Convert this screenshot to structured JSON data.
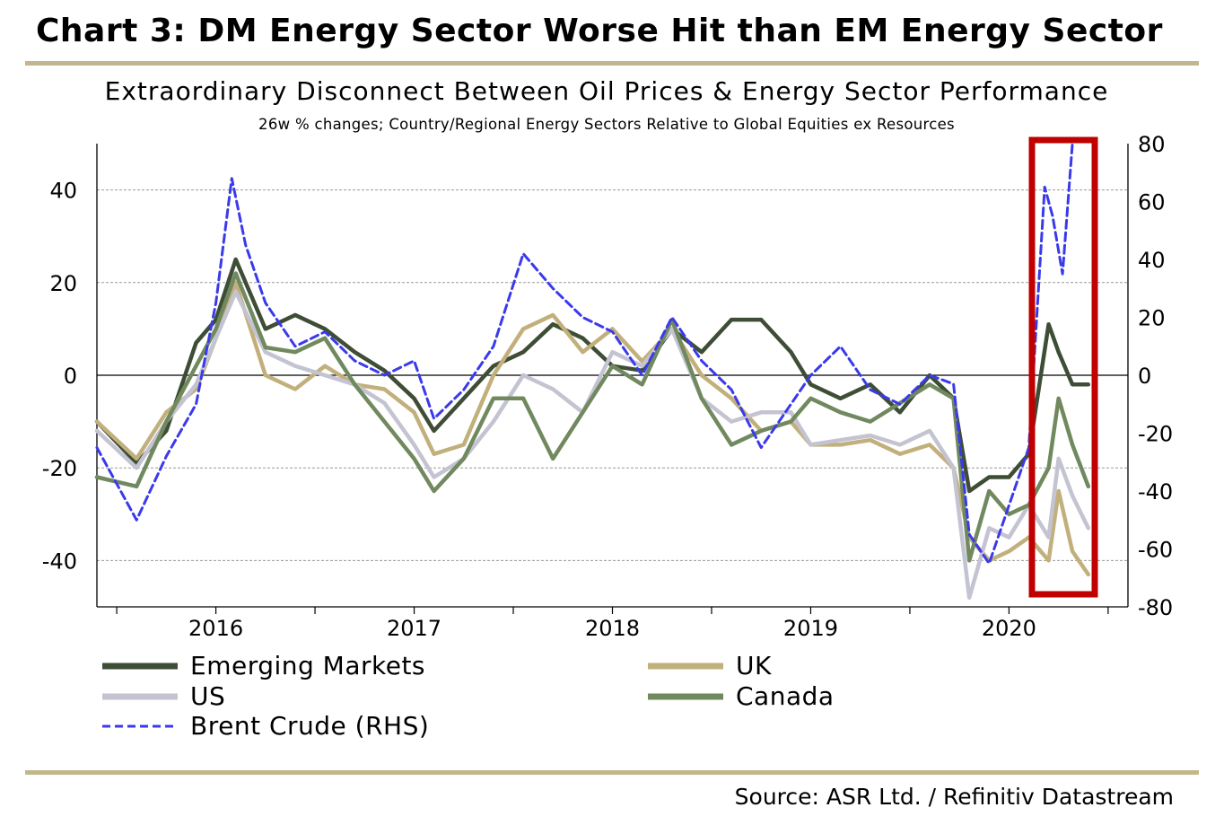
{
  "header": {
    "title": "Chart 3: DM Energy Sector Worse Hit than EM Energy Sector"
  },
  "footer": {
    "source": "Source: ASR Ltd. / Refinitiv Datastream"
  },
  "chart_data": {
    "type": "line",
    "title": "Extraordinary Disconnect Between Oil Prices & Energy Sector Performance",
    "subtitle": "26w % changes; Country/Regional Energy Sectors Relative to Global Equities ex Resources",
    "x_axis": {
      "range": [
        2015.4,
        2020.6
      ],
      "ticks": [
        2016,
        2017,
        2018,
        2019,
        2020
      ]
    },
    "y_left": {
      "range": [
        -50,
        50
      ],
      "ticks": [
        -40,
        -20,
        0,
        20,
        40
      ]
    },
    "y_right": {
      "range": [
        -80,
        80
      ],
      "ticks": [
        -80,
        -60,
        -40,
        -20,
        0,
        20,
        40,
        60,
        80
      ]
    },
    "grid": true,
    "legend_position": "bottom",
    "series": [
      {
        "name": "Emerging Markets",
        "axis": "left",
        "color": "#3e4d35",
        "dash": false,
        "x": [
          2015.4,
          2015.6,
          2015.75,
          2015.9,
          2016.0,
          2016.1,
          2016.25,
          2016.4,
          2016.55,
          2016.7,
          2016.85,
          2017.0,
          2017.1,
          2017.25,
          2017.4,
          2017.55,
          2017.7,
          2017.85,
          2018.0,
          2018.15,
          2018.3,
          2018.45,
          2018.6,
          2018.75,
          2018.9,
          2019.0,
          2019.15,
          2019.3,
          2019.45,
          2019.6,
          2019.72,
          2019.8,
          2019.9,
          2020.0,
          2020.1,
          2020.2,
          2020.25,
          2020.32,
          2020.4
        ],
        "y": [
          -10,
          -19,
          -12,
          7,
          12,
          25,
          10,
          13,
          10,
          5,
          1,
          -5,
          -12,
          -5,
          2,
          5,
          11,
          8,
          2,
          1,
          10,
          5,
          12,
          12,
          5,
          -2,
          -5,
          -2,
          -8,
          0,
          -5,
          -25,
          -22,
          -22,
          -17,
          11,
          5,
          -2,
          -2
        ]
      },
      {
        "name": "UK",
        "axis": "left",
        "color": "#c2b07c",
        "dash": false,
        "x": [
          2015.4,
          2015.6,
          2015.75,
          2015.9,
          2016.0,
          2016.1,
          2016.25,
          2016.4,
          2016.55,
          2016.7,
          2016.85,
          2017.0,
          2017.1,
          2017.25,
          2017.4,
          2017.55,
          2017.7,
          2017.85,
          2018.0,
          2018.15,
          2018.3,
          2018.45,
          2018.6,
          2018.75,
          2018.9,
          2019.0,
          2019.15,
          2019.3,
          2019.45,
          2019.6,
          2019.72,
          2019.8,
          2019.9,
          2020.0,
          2020.1,
          2020.2,
          2020.25,
          2020.32,
          2020.4
        ],
        "y": [
          -10,
          -18,
          -8,
          -3,
          8,
          20,
          0,
          -3,
          2,
          -2,
          -3,
          -8,
          -17,
          -15,
          0,
          10,
          13,
          5,
          10,
          3,
          10,
          0,
          -5,
          -12,
          -10,
          -15,
          -15,
          -14,
          -17,
          -15,
          -20,
          -35,
          -40,
          -38,
          -35,
          -40,
          -25,
          -38,
          -43
        ]
      },
      {
        "name": "US",
        "axis": "left",
        "color": "#c4c3d2",
        "dash": false,
        "x": [
          2015.4,
          2015.6,
          2015.75,
          2015.9,
          2016.0,
          2016.1,
          2016.25,
          2016.4,
          2016.55,
          2016.7,
          2016.85,
          2017.0,
          2017.1,
          2017.25,
          2017.4,
          2017.55,
          2017.7,
          2017.85,
          2018.0,
          2018.15,
          2018.3,
          2018.45,
          2018.6,
          2018.75,
          2018.9,
          2019.0,
          2019.15,
          2019.3,
          2019.45,
          2019.6,
          2019.72,
          2019.8,
          2019.9,
          2020.0,
          2020.1,
          2020.2,
          2020.25,
          2020.32,
          2020.4
        ],
        "y": [
          -12,
          -20,
          -10,
          -2,
          8,
          18,
          5,
          2,
          0,
          -2,
          -6,
          -15,
          -22,
          -18,
          -10,
          0,
          -3,
          -8,
          5,
          2,
          10,
          -5,
          -10,
          -8,
          -8,
          -15,
          -14,
          -13,
          -15,
          -12,
          -20,
          -48,
          -33,
          -35,
          -28,
          -35,
          -18,
          -26,
          -33
        ]
      },
      {
        "name": "Canada",
        "axis": "left",
        "color": "#71895f",
        "dash": false,
        "x": [
          2015.4,
          2015.6,
          2015.75,
          2015.9,
          2016.0,
          2016.1,
          2016.25,
          2016.4,
          2016.55,
          2016.7,
          2016.85,
          2017.0,
          2017.1,
          2017.25,
          2017.4,
          2017.55,
          2017.7,
          2017.85,
          2018.0,
          2018.15,
          2018.3,
          2018.45,
          2018.6,
          2018.75,
          2018.9,
          2019.0,
          2019.15,
          2019.3,
          2019.45,
          2019.6,
          2019.72,
          2019.8,
          2019.9,
          2020.0,
          2020.1,
          2020.2,
          2020.25,
          2020.32,
          2020.4
        ],
        "y": [
          -22,
          -24,
          -10,
          2,
          10,
          22,
          6,
          5,
          8,
          -2,
          -10,
          -18,
          -25,
          -18,
          -5,
          -5,
          -18,
          -8,
          2,
          -2,
          12,
          -5,
          -15,
          -12,
          -10,
          -5,
          -8,
          -10,
          -6,
          -2,
          -5,
          -40,
          -25,
          -30,
          -28,
          -20,
          -5,
          -15,
          -24
        ]
      },
      {
        "name": "Brent Crude (RHS)",
        "axis": "right",
        "color": "#3a3aec",
        "dash": true,
        "x": [
          2015.4,
          2015.6,
          2015.75,
          2015.9,
          2016.0,
          2016.08,
          2016.15,
          2016.25,
          2016.4,
          2016.55,
          2016.7,
          2016.85,
          2017.0,
          2017.1,
          2017.25,
          2017.4,
          2017.55,
          2017.7,
          2017.85,
          2018.0,
          2018.15,
          2018.3,
          2018.45,
          2018.6,
          2018.75,
          2018.9,
          2019.0,
          2019.15,
          2019.3,
          2019.45,
          2019.6,
          2019.72,
          2019.8,
          2019.9,
          2020.0,
          2020.1,
          2020.18,
          2020.22,
          2020.27,
          2020.32
        ],
        "y": [
          -25,
          -50,
          -28,
          -10,
          25,
          68,
          45,
          25,
          10,
          15,
          5,
          0,
          5,
          -15,
          -5,
          10,
          42,
          30,
          20,
          15,
          0,
          20,
          5,
          -5,
          -25,
          -10,
          0,
          10,
          -5,
          -10,
          0,
          -3,
          -55,
          -65,
          -45,
          -25,
          65,
          55,
          35,
          80
        ]
      }
    ]
  }
}
